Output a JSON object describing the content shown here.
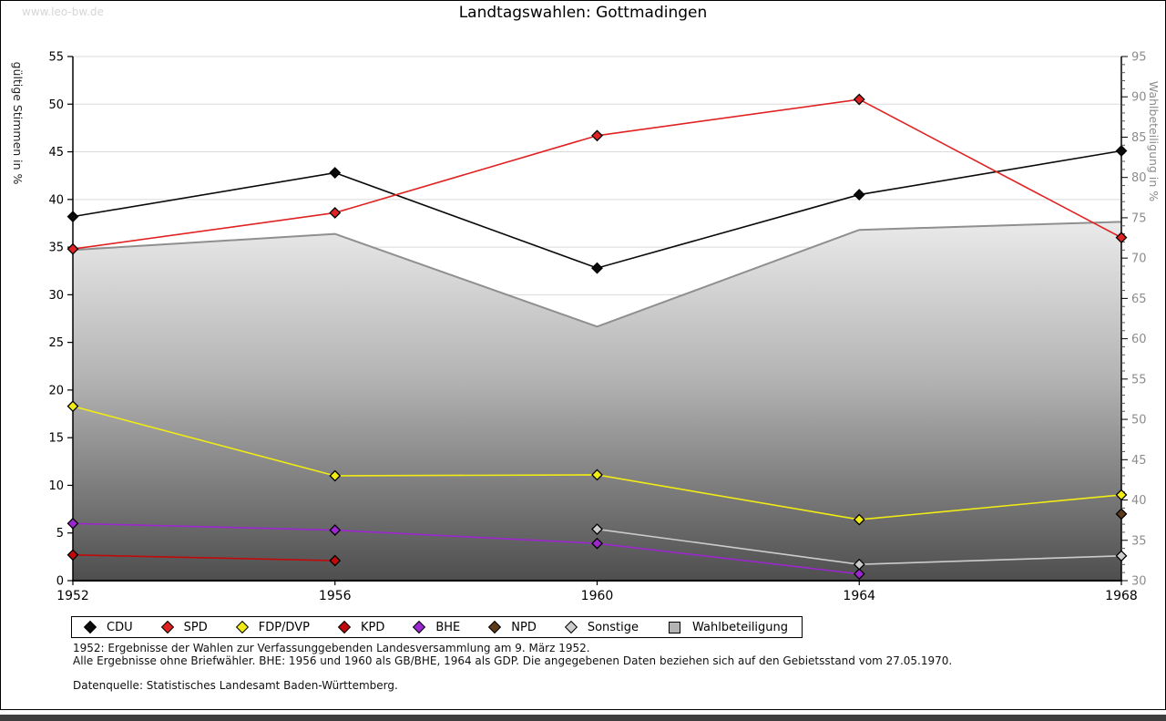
{
  "page": {
    "watermark": "www.leo-bw.de",
    "title": "Landtagswahlen: Gottmadingen",
    "footnotes": [
      "1952: Ergebnisse der Wahlen zur Verfassunggebenden Landesversammlung am 9. März 1952.",
      "Alle Ergebnisse ohne Briefwähler. BHE: 1956 und 1960 als GB/BHE, 1964 als GDP. Die angegebenen Daten beziehen sich auf den Gebietsstand vom 27.05.1970."
    ],
    "source": "Datenquelle: Statistisches Landesamt Baden-Württemberg."
  },
  "chart_data": {
    "type": "line",
    "title": "Landtagswahlen: Gottmadingen",
    "categories": [
      "1952",
      "1956",
      "1960",
      "1964",
      "1968"
    ],
    "left_axis": {
      "label": "gültige Stimmen in %",
      "min": 0,
      "max": 55,
      "tick_step": 5
    },
    "right_axis": {
      "label": "Wahlbeteiligung in %",
      "min": 30,
      "max": 95,
      "tick_step": 5,
      "minor_tick_step": 1
    },
    "grid": true,
    "legend_position": "bottom",
    "colors": {
      "grid": "#dadada",
      "axis": "#000000",
      "right_tick_text": "#8c8c8c",
      "turnout_line": "#8f8f8f",
      "turnout_legend_fill": "#b3b3b3"
    },
    "series": [
      {
        "name": "CDU",
        "axis": "left",
        "color": "#0a0a0a",
        "values": [
          38.2,
          42.8,
          32.8,
          40.5,
          45.1
        ]
      },
      {
        "name": "SPD",
        "axis": "left",
        "color": "#e02222",
        "values": [
          34.8,
          38.6,
          46.7,
          50.5,
          36.0
        ]
      },
      {
        "name": "FDP/DVP",
        "axis": "left",
        "color": "#f0ec14",
        "values": [
          18.3,
          11.0,
          11.1,
          6.4,
          9.0
        ]
      },
      {
        "name": "KPD",
        "axis": "left",
        "color": "#c00a0a",
        "values": [
          2.7,
          2.1,
          null,
          null,
          null
        ]
      },
      {
        "name": "BHE",
        "axis": "left",
        "color": "#9c27cf",
        "values": [
          6.0,
          5.3,
          3.9,
          0.7,
          null
        ]
      },
      {
        "name": "NPD",
        "axis": "left",
        "color": "#5d3a1a",
        "values": [
          null,
          null,
          null,
          null,
          7.0
        ]
      },
      {
        "name": "Sonstige",
        "axis": "left",
        "color": "#cccccc",
        "values": [
          null,
          null,
          5.4,
          1.7,
          2.6
        ]
      }
    ],
    "area_series": {
      "name": "Wahlbeteiligung",
      "axis": "right",
      "values": [
        71,
        73,
        61.5,
        73.5,
        74.5
      ]
    }
  }
}
